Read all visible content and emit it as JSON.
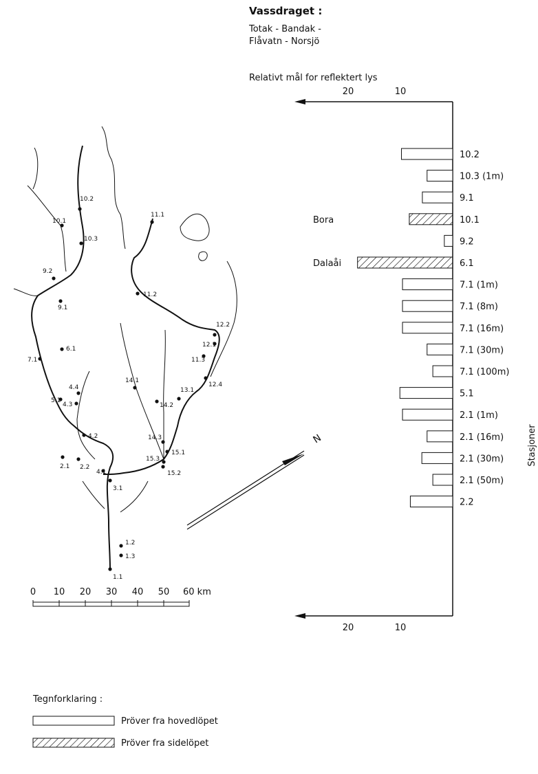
{
  "header": {
    "title": "Vassdraget :",
    "subtitle_line1": "Totak - Bandak -",
    "subtitle_line2": "Flåvatn - Norsjö"
  },
  "chart_data": {
    "type": "bar",
    "orientation": "horizontal",
    "axis_direction": "reversed",
    "xlabel": "Relativt mål for reflektert lys",
    "ylabel": "Stasjoner",
    "xlim": [
      0,
      30
    ],
    "xticks": [
      "20",
      "10"
    ],
    "xtick_values": [
      20,
      10
    ],
    "categories": [
      "10.2",
      "10.3 (1m)",
      "9.1",
      "10.1",
      "9.2",
      "6.1",
      "7.1 (1m)",
      "7.1 (8m)",
      "7.1 (16m)",
      "7.1 (30m)",
      "7.1 (100m)",
      "5.1",
      "2.1 (1m)",
      "2.1 (16m)",
      "2.1 (30m)",
      "2.1 (50m)",
      "2.2"
    ],
    "values": [
      9.8,
      4.9,
      5.8,
      8.3,
      1.6,
      18.2,
      9.6,
      9.6,
      9.6,
      4.9,
      3.8,
      10.1,
      9.6,
      4.9,
      5.9,
      3.8,
      8.1
    ],
    "sample_type": [
      "hoved",
      "hoved",
      "hoved",
      "side",
      "hoved",
      "side",
      "hoved",
      "hoved",
      "hoved",
      "hoved",
      "hoved",
      "hoved",
      "hoved",
      "hoved",
      "hoved",
      "hoved",
      "hoved"
    ],
    "bar_annotations": [
      {
        "category": "10.1",
        "text": "Bora"
      },
      {
        "category": "6.1",
        "text": "Dalaåi"
      }
    ]
  },
  "map": {
    "north_label": "N",
    "scale_ticks": [
      "0",
      "10",
      "20",
      "30",
      "40",
      "50",
      "60 km"
    ],
    "stations": [
      "10.2",
      "10.1",
      "10.3",
      "11.1",
      "9.2",
      "9.1",
      "11.2",
      "12.2",
      "12.1",
      "11.3",
      "6.1",
      "7.1",
      "14.1",
      "4.4",
      "13.1",
      "4.3",
      "14.2",
      "12.4",
      "5.1",
      "4.2",
      "14.3",
      "15.1",
      "15.3",
      "15.2",
      "2.1",
      "2.2",
      "4.1",
      "3.1",
      "1.2",
      "1.3",
      "1.1"
    ]
  },
  "legend": {
    "title": "Tegnforklaring :",
    "items": [
      "Pröver fra hovedlöpet",
      "Pröver fra sidelöpet"
    ]
  }
}
